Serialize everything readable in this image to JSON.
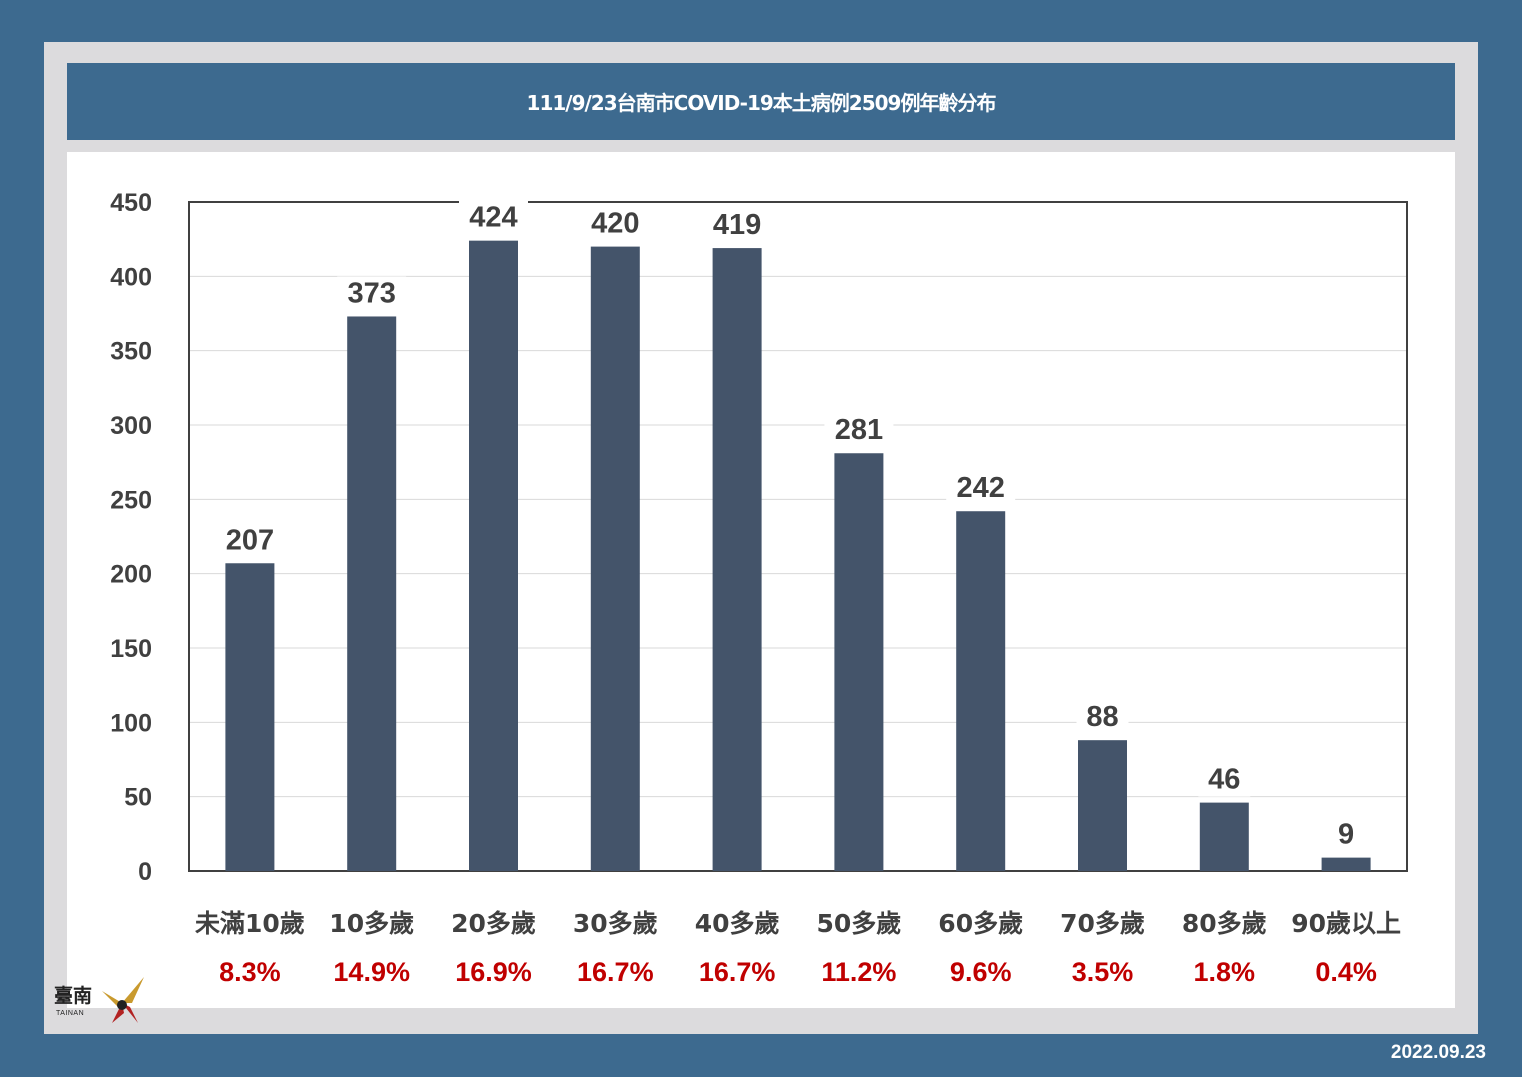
{
  "title": "111/9/23台南市COVID-19本土病例2509例年齡分布",
  "date": "2022.09.23",
  "logo": {
    "text": "臺南",
    "sub": "TAINAN"
  },
  "colors": {
    "background": "#3d6a8f",
    "frame": "#dcdbdd",
    "bar": "#44546a",
    "percent": "#c00000",
    "axis_text": "#404040"
  },
  "chart_data": {
    "type": "bar",
    "categories": [
      "未滿10歲",
      "10多歲",
      "20多歲",
      "30多歲",
      "40多歲",
      "50多歲",
      "60多歲",
      "70多歲",
      "80多歲",
      "90歲以上"
    ],
    "values": [
      207,
      373,
      424,
      420,
      419,
      281,
      242,
      88,
      46,
      9
    ],
    "percentages": [
      "8.3%",
      "14.9%",
      "16.9%",
      "16.7%",
      "16.7%",
      "11.2%",
      "9.6%",
      "3.5%",
      "1.8%",
      "0.4%"
    ],
    "ylim": [
      0,
      450
    ],
    "yticks": [
      0,
      50,
      100,
      150,
      200,
      250,
      300,
      350,
      400,
      450
    ],
    "grid": true,
    "legend": "none"
  }
}
